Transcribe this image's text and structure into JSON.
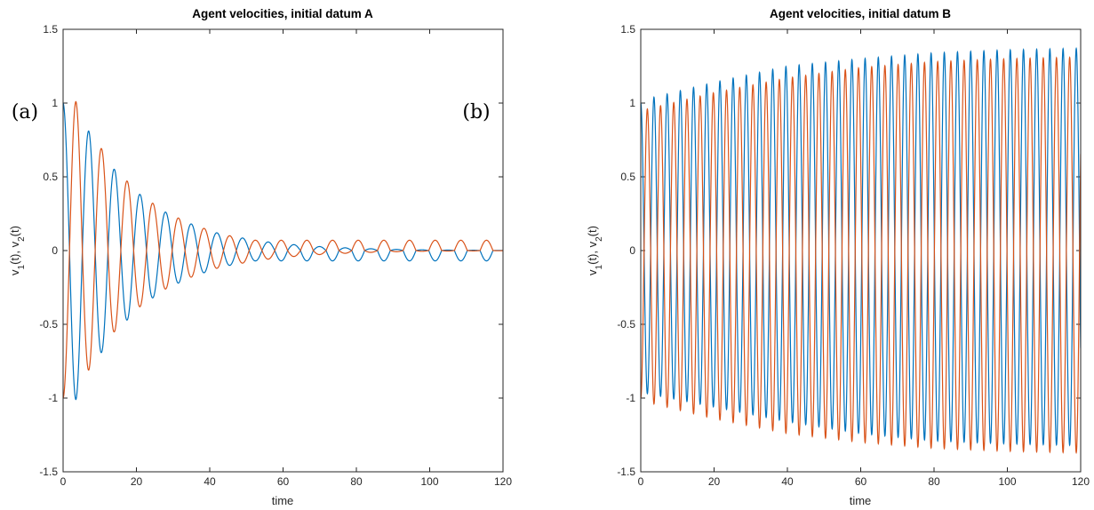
{
  "chart_data": [
    {
      "type": "line",
      "title": "Agent velocities, initial datum A",
      "panel_label": "(a)",
      "xlabel": "time",
      "ylabel": "v_1(t), v_2(t)",
      "xlim": [
        0,
        120
      ],
      "ylim": [
        -1.5,
        1.5
      ],
      "xticks": [
        "0",
        "20",
        "40",
        "60",
        "80",
        "100",
        "120"
      ],
      "yticks": [
        "1.5",
        "1",
        "0.5",
        "0",
        "-0.5",
        "-1",
        "-1.5"
      ],
      "grid": false,
      "oscillation_period": 7.0,
      "series": [
        {
          "color": "#0072BD",
          "start_value": 1.0,
          "peaks": [
            {
              "t": 0,
              "v": 1.0
            },
            {
              "t": 3.5,
              "v": -1.01
            },
            {
              "t": 7.0,
              "v": 0.81
            },
            {
              "t": 10.5,
              "v": -0.69
            },
            {
              "t": 14.0,
              "v": 0.55
            },
            {
              "t": 17.5,
              "v": -0.47
            },
            {
              "t": 21.0,
              "v": 0.38
            },
            {
              "t": 24.5,
              "v": -0.32
            },
            {
              "t": 28.0,
              "v": 0.26
            },
            {
              "t": 31.5,
              "v": -0.22
            },
            {
              "t": 35.0,
              "v": 0.18
            },
            {
              "t": 38.5,
              "v": -0.15
            },
            {
              "t": 42.0,
              "v": 0.12
            },
            {
              "t": 45.5,
              "v": -0.1
            },
            {
              "t": 49.0,
              "v": 0.085
            },
            {
              "t": 52.5,
              "v": -0.07
            },
            {
              "t": 56.0,
              "v": 0.058
            },
            {
              "t": 63.0,
              "v": 0.04
            },
            {
              "t": 70.0,
              "v": 0.027
            },
            {
              "t": 80.0,
              "v": 0.015
            },
            {
              "t": 90.0,
              "v": 0.008
            },
            {
              "t": 100.0,
              "v": 0.004
            },
            {
              "t": 120.0,
              "v": 0.001
            }
          ]
        },
        {
          "color": "#D95319",
          "start_value": -1.0,
          "peaks": [
            {
              "t": 0,
              "v": -1.0
            },
            {
              "t": 3.5,
              "v": 1.01
            },
            {
              "t": 7.0,
              "v": -0.81
            },
            {
              "t": 10.5,
              "v": 0.69
            },
            {
              "t": 14.0,
              "v": -0.55
            },
            {
              "t": 17.5,
              "v": 0.47
            },
            {
              "t": 21.0,
              "v": -0.38
            },
            {
              "t": 24.5,
              "v": 0.32
            },
            {
              "t": 28.0,
              "v": -0.26
            },
            {
              "t": 31.5,
              "v": 0.22
            },
            {
              "t": 35.0,
              "v": -0.18
            },
            {
              "t": 38.5,
              "v": 0.15
            },
            {
              "t": 42.0,
              "v": -0.12
            },
            {
              "t": 45.5,
              "v": 0.1
            },
            {
              "t": 49.0,
              "v": -0.085
            },
            {
              "t": 52.5,
              "v": 0.07
            },
            {
              "t": 56.0,
              "v": -0.058
            },
            {
              "t": 63.0,
              "v": -0.04
            },
            {
              "t": 70.0,
              "v": -0.027
            },
            {
              "t": 80.0,
              "v": -0.015
            },
            {
              "t": 90.0,
              "v": -0.008
            },
            {
              "t": 100.0,
              "v": -0.004
            },
            {
              "t": 120.0,
              "v": -0.001
            }
          ]
        }
      ]
    },
    {
      "type": "line",
      "title": "Agent velocities, initial datum B",
      "panel_label": "(b)",
      "xlabel": "time",
      "ylabel": "v_1(t), v_2(t)",
      "xlim": [
        0,
        120
      ],
      "ylim": [
        -1.5,
        1.5
      ],
      "xticks": [
        "0",
        "20",
        "40",
        "60",
        "80",
        "100",
        "120"
      ],
      "yticks": [
        "1.5",
        "1",
        "0.5",
        "0",
        "-0.5",
        "-1",
        "-1.5"
      ],
      "grid": false,
      "oscillation_period": 3.6,
      "series": [
        {
          "color": "#0072BD",
          "start_value": 1.0,
          "peaks": [
            {
              "t": 0,
              "v": 1.0
            },
            {
              "t": 1.8,
              "v": -0.97
            },
            {
              "t": 3.6,
              "v": 1.04
            },
            {
              "t": 20.0,
              "v": 1.14
            },
            {
              "t": 40.0,
              "v": 1.25
            },
            {
              "t": 60.0,
              "v": 1.3
            },
            {
              "t": 80.0,
              "v": 1.34
            },
            {
              "t": 100.0,
              "v": 1.36
            },
            {
              "t": 118.0,
              "v": 1.37
            },
            {
              "t": 20.0,
              "v": -1.06
            },
            {
              "t": 40.0,
              "v": -1.16
            },
            {
              "t": 60.0,
              "v": -1.24
            },
            {
              "t": 80.0,
              "v": -1.29
            },
            {
              "t": 100.0,
              "v": -1.31
            },
            {
              "t": 118.0,
              "v": -1.32
            }
          ]
        },
        {
          "color": "#D95319",
          "start_value": -1.0,
          "peaks": [
            {
              "t": 0,
              "v": -1.0
            },
            {
              "t": 1.8,
              "v": 0.96
            },
            {
              "t": 3.6,
              "v": -1.04
            },
            {
              "t": 20.0,
              "v": 1.07
            },
            {
              "t": 40.0,
              "v": 1.17
            },
            {
              "t": 60.0,
              "v": 1.24
            },
            {
              "t": 80.0,
              "v": 1.28
            },
            {
              "t": 100.0,
              "v": 1.3
            },
            {
              "t": 118.0,
              "v": 1.31
            },
            {
              "t": 20.0,
              "v": -1.14
            },
            {
              "t": 40.0,
              "v": -1.24
            },
            {
              "t": 60.0,
              "v": -1.3
            },
            {
              "t": 80.0,
              "v": -1.34
            },
            {
              "t": 100.0,
              "v": -1.36
            },
            {
              "t": 118.0,
              "v": -1.37
            }
          ]
        }
      ]
    }
  ]
}
